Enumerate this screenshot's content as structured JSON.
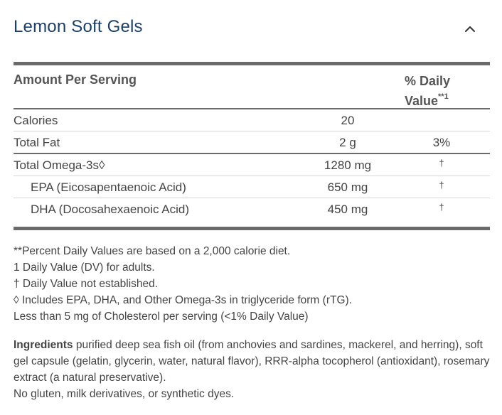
{
  "product": {
    "title": "Lemon Soft Gels"
  },
  "facts": {
    "col_amount": "Amount Per Serving",
    "col_dv": "% Daily Value",
    "col_dv_sup": "**1",
    "rows": [
      {
        "name": "Calories",
        "amount": "20",
        "dv": ""
      },
      {
        "name": "Total Fat",
        "amount": "2 g",
        "dv": "3%"
      },
      {
        "name": "Total Omega-3s◊",
        "amount": "1280 mg",
        "dv": "†"
      },
      {
        "name": "EPA (Eicosapentaenoic Acid)",
        "amount": "650 mg",
        "dv": "†"
      },
      {
        "name": "DHA (Docosahexaenoic Acid)",
        "amount": "450 mg",
        "dv": "†"
      }
    ]
  },
  "footnotes": [
    "**Percent Daily Values are based on a 2,000 calorie diet.",
    "1 Daily Value (DV) for adults.",
    "† Daily Value not established.",
    "◊ Includes EPA, DHA, and Other Omega-3s in triglyceride form (rTG).",
    "Less than 5 mg of Cholesterol per serving (<1% Daily Value)"
  ],
  "ingredients": {
    "label": "Ingredients",
    "text": " purified deep sea fish oil (from anchovies and sardines, mackerel, and herring), soft gel capsule (gelatin, glycerin, water, natural flavor), RRR-alpha tocopherol (antioxidant), rosemary extract (a natural preservative).",
    "free_from": "No gluten, milk derivatives, or synthetic dyes."
  },
  "icons": {
    "collapse": "chevron-up-icon"
  },
  "colors": {
    "title": "#1a3f6b",
    "rule": "#6b6b6b"
  }
}
